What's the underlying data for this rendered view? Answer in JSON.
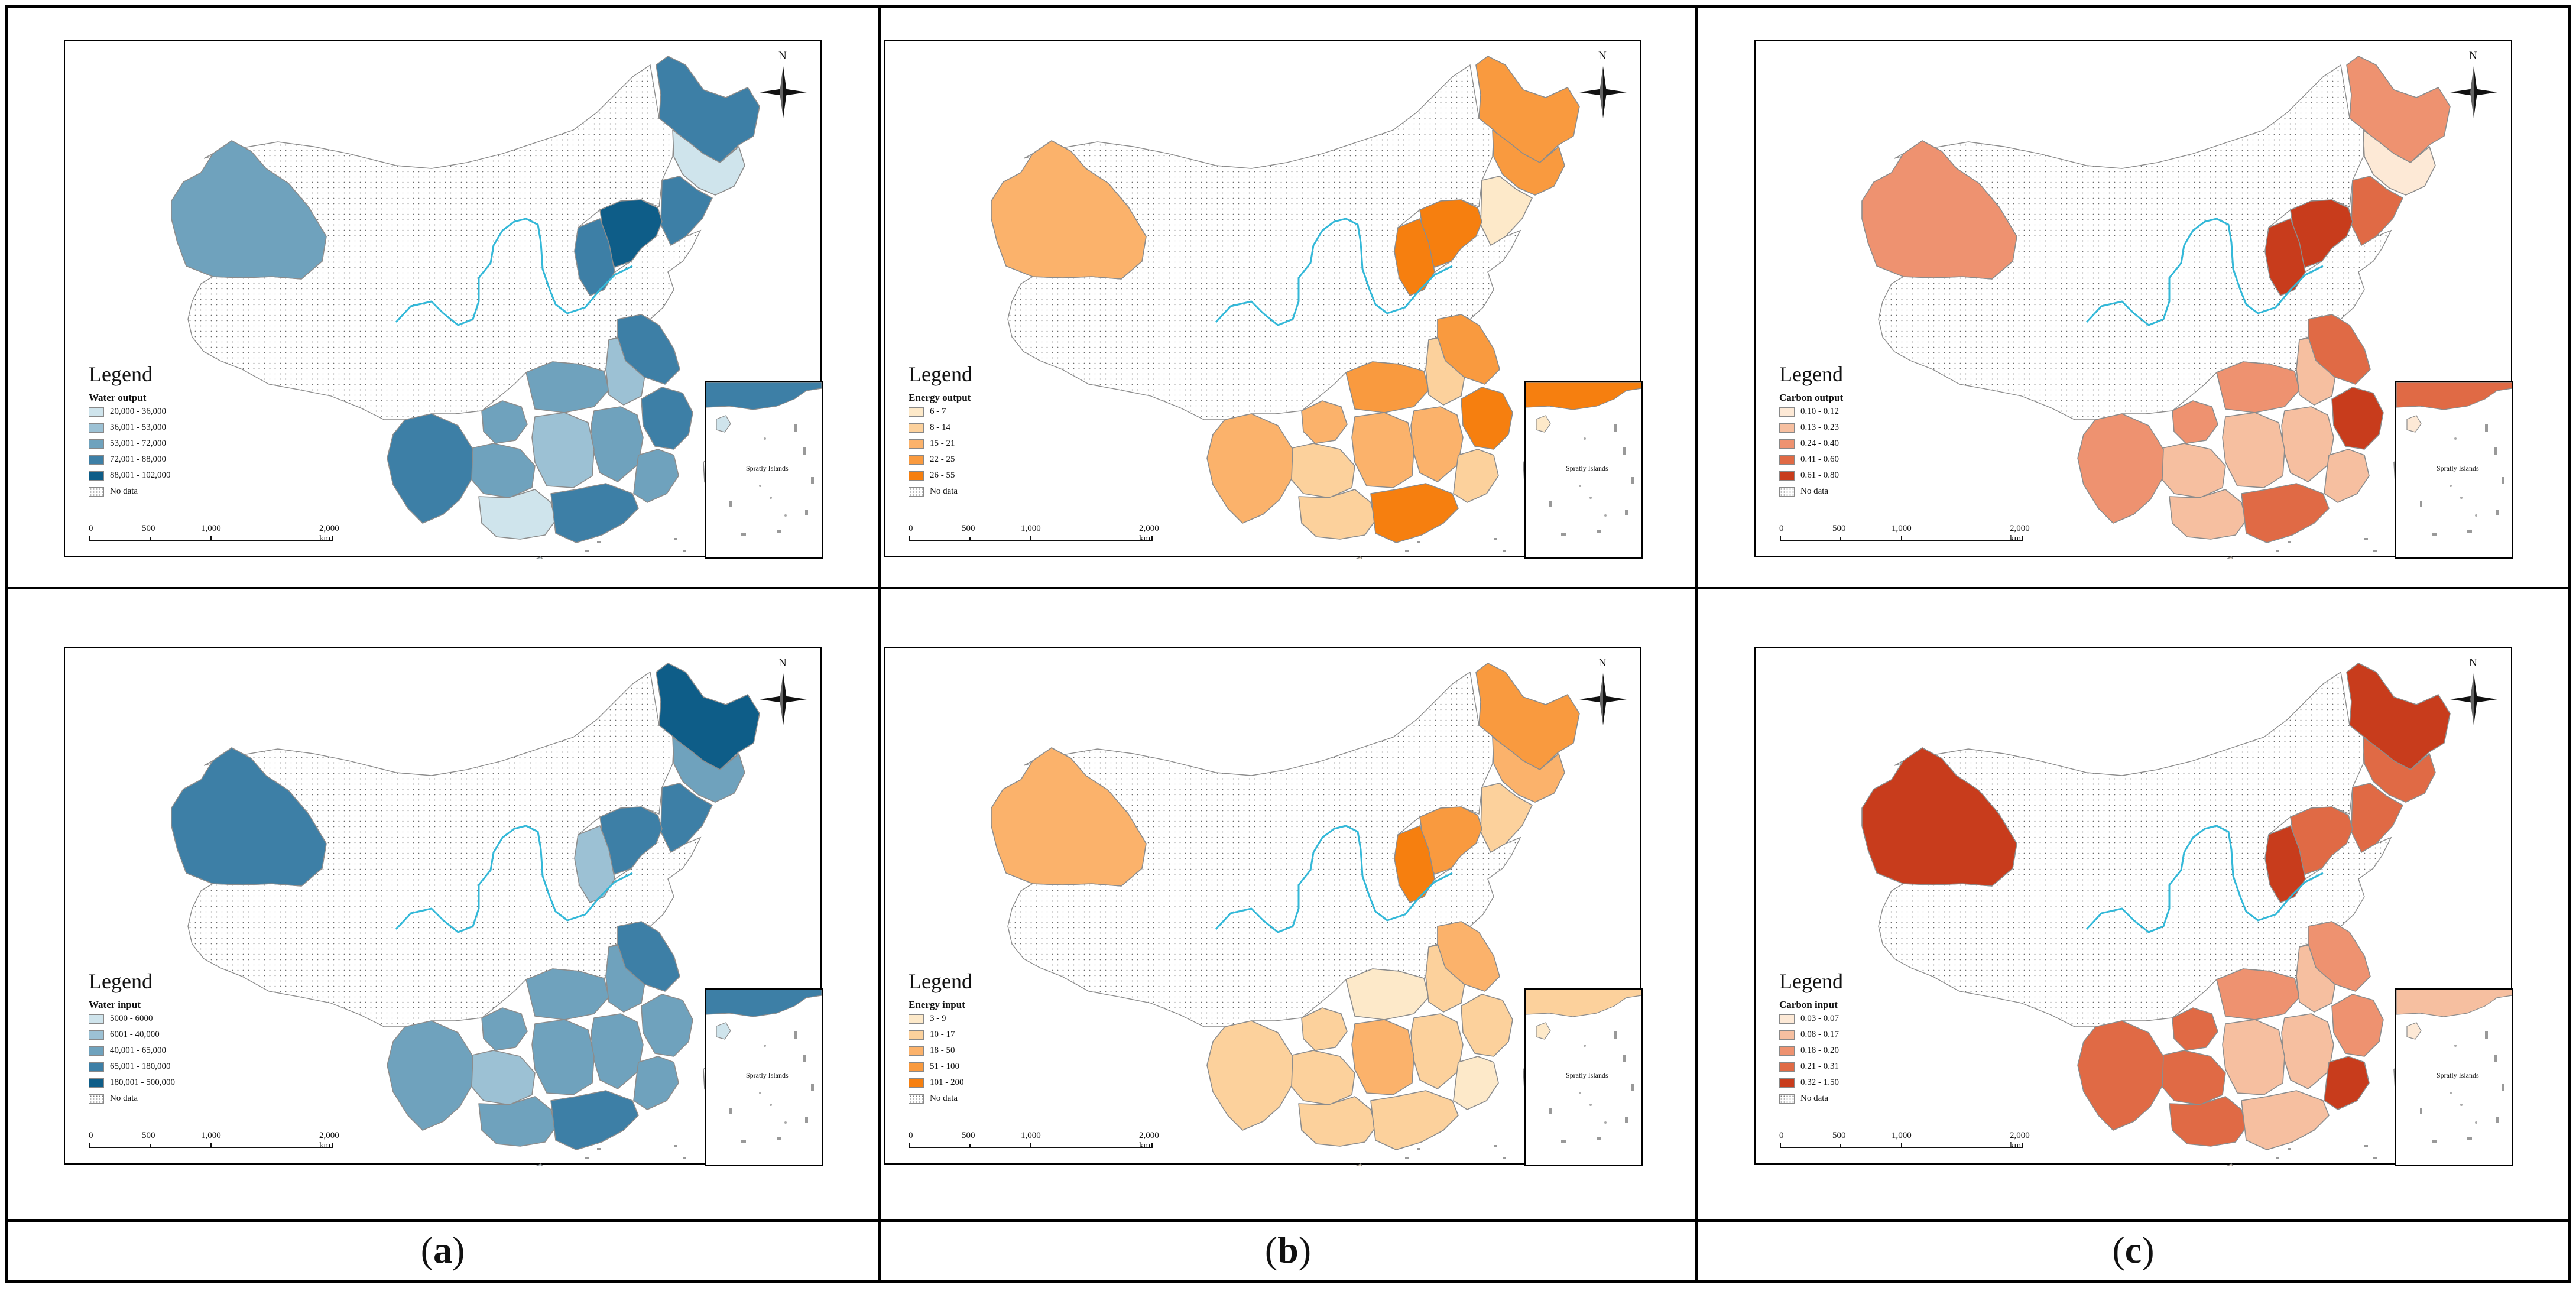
{
  "legend_heading": "Legend",
  "scalebar_ticks": [
    "0",
    "500",
    "1,000",
    "2,000 km"
  ],
  "inset_label": "Spratly Islands",
  "compass_label": "N",
  "nodata_label": "No data",
  "captions": [
    "a",
    "b",
    "c"
  ],
  "colors": {
    "nodata_fill": "#ffffff",
    "boundary": "#8c8c8c",
    "river": "#33b8d8"
  },
  "maps": [
    {
      "variable": "Water output",
      "classes": [
        "20,000 - 36,000",
        "36,001 - 53,000",
        "53,001 - 72,000",
        "72,001 - 88,000",
        "88,001 - 102,000"
      ],
      "palette": [
        "#cfe4ec",
        "#9cc1d4",
        "#6fa2bd",
        "#3d7fa6",
        "#0e5d88"
      ],
      "region_class": {
        "xinjiang": 3,
        "heilongjiang": 4,
        "jilin": 1,
        "liaoning": 4,
        "beijing_tianjin_hebei": 5,
        "shanxi": 4,
        "yunnan": 4,
        "guangxi": 1,
        "guangdong": 4,
        "hunan": 2,
        "jiangxi": 3,
        "fujian": 3,
        "zhejiang": 4,
        "jiangsu": 4,
        "anhui": 2,
        "hubei": 3,
        "guizhou": 3,
        "hainan": 1,
        "chongqing": 3,
        "taiwan": 0
      }
    },
    {
      "variable": "Energy output",
      "classes": [
        "6 - 7",
        "8 - 14",
        "15 - 21",
        "22 - 25",
        "26 - 55"
      ],
      "palette": [
        "#fde9c9",
        "#fcd19c",
        "#fbb26b",
        "#f99a3f",
        "#f67f0f"
      ],
      "region_class": {
        "xinjiang": 3,
        "heilongjiang": 4,
        "jilin": 4,
        "liaoning": 1,
        "beijing_tianjin_hebei": 5,
        "shanxi": 5,
        "yunnan": 3,
        "guangxi": 2,
        "guangdong": 5,
        "hunan": 3,
        "jiangxi": 3,
        "fujian": 2,
        "zhejiang": 5,
        "jiangsu": 4,
        "anhui": 2,
        "hubei": 4,
        "guizhou": 2,
        "hainan": 1,
        "chongqing": 3,
        "taiwan": 0
      }
    },
    {
      "variable": "Carbon output",
      "classes": [
        "0.10 - 0.12",
        "0.13 - 0.23",
        "0.24 - 0.40",
        "0.41 - 0.60",
        "0.61 - 0.80"
      ],
      "palette": [
        "#fde9d6",
        "#f6bfa0",
        "#ee9270",
        "#e06a45",
        "#c83c1c"
      ],
      "region_class": {
        "xinjiang": 3,
        "heilongjiang": 3,
        "jilin": 1,
        "liaoning": 4,
        "beijing_tianjin_hebei": 5,
        "shanxi": 5,
        "yunnan": 3,
        "guangxi": 2,
        "guangdong": 4,
        "hunan": 2,
        "jiangxi": 2,
        "fujian": 2,
        "zhejiang": 5,
        "jiangsu": 4,
        "anhui": 2,
        "hubei": 3,
        "guizhou": 2,
        "hainan": 1,
        "chongqing": 3,
        "taiwan": 0
      }
    },
    {
      "variable": "Water input",
      "classes": [
        "5000 - 6000",
        "6001 - 40,000",
        "40,001 - 65,000",
        "65,001 - 180,000",
        "180,001 - 500,000"
      ],
      "palette": [
        "#cfe4ec",
        "#9cc1d4",
        "#6fa2bd",
        "#3d7fa6",
        "#0e5d88"
      ],
      "region_class": {
        "xinjiang": 4,
        "heilongjiang": 5,
        "jilin": 3,
        "liaoning": 4,
        "beijing_tianjin_hebei": 4,
        "shanxi": 2,
        "yunnan": 3,
        "guangxi": 3,
        "guangdong": 4,
        "hunan": 3,
        "jiangxi": 3,
        "fujian": 3,
        "zhejiang": 3,
        "jiangsu": 4,
        "anhui": 3,
        "hubei": 3,
        "guizhou": 2,
        "hainan": 1,
        "chongqing": 3,
        "taiwan": 0
      }
    },
    {
      "variable": "Energy input",
      "classes": [
        "3 - 9",
        "10 - 17",
        "18 - 50",
        "51 - 100",
        "101 - 200"
      ],
      "palette": [
        "#fde9c9",
        "#fcd19c",
        "#fbb26b",
        "#f99a3f",
        "#f67f0f"
      ],
      "region_class": {
        "xinjiang": 3,
        "heilongjiang": 4,
        "jilin": 3,
        "liaoning": 2,
        "beijing_tianjin_hebei": 4,
        "shanxi": 5,
        "yunnan": 2,
        "guangxi": 2,
        "guangdong": 2,
        "hunan": 3,
        "jiangxi": 2,
        "fujian": 1,
        "zhejiang": 2,
        "jiangsu": 3,
        "anhui": 2,
        "hubei": 1,
        "guizhou": 2,
        "hainan": 1,
        "chongqing": 2,
        "taiwan": 0
      }
    },
    {
      "variable": "Carbon input",
      "classes": [
        "0.03 - 0.07",
        "0.08 - 0.17",
        "0.18 - 0.20",
        "0.21 - 0.31",
        "0.32 - 1.50"
      ],
      "palette": [
        "#fde9d6",
        "#f6bfa0",
        "#ee9270",
        "#e06a45",
        "#c83c1c"
      ],
      "region_class": {
        "xinjiang": 5,
        "heilongjiang": 5,
        "jilin": 4,
        "liaoning": 4,
        "beijing_tianjin_hebei": 4,
        "shanxi": 5,
        "yunnan": 4,
        "guangxi": 4,
        "guangdong": 2,
        "hunan": 2,
        "jiangxi": 2,
        "fujian": 5,
        "zhejiang": 3,
        "jiangsu": 3,
        "anhui": 2,
        "hubei": 3,
        "guizhou": 4,
        "hainan": 1,
        "chongqing": 4,
        "taiwan": 0
      }
    }
  ]
}
